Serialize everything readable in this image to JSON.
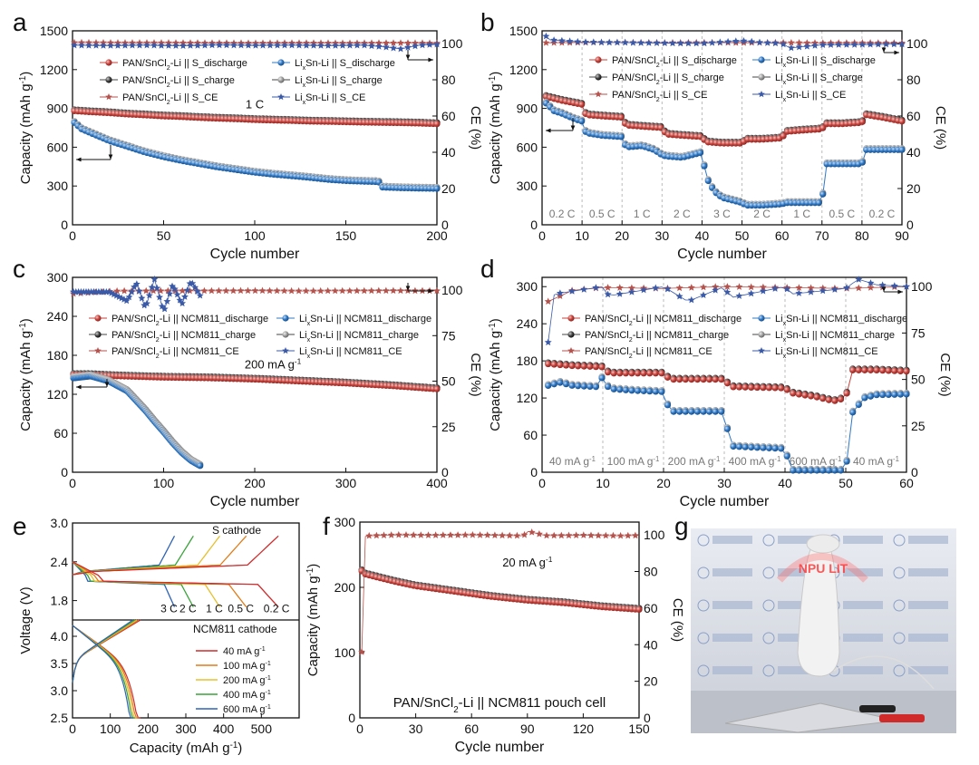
{
  "figure": {
    "panel_labels": [
      "a",
      "b",
      "c",
      "d",
      "e",
      "f",
      "g"
    ],
    "colors": {
      "red": "#c9403a",
      "blue": "#2e78c6",
      "black": "#333333",
      "gray": "#9a9a9a",
      "star_red": "#b5524c",
      "star_blue": "#3a5aa8"
    }
  },
  "chart_data": [
    {
      "panel": "a",
      "type": "scatter",
      "xlabel": "Cycle number",
      "ylabel": "Capacity (mAh g-1)",
      "y2label": "CE (%)",
      "xlim": [
        0,
        200
      ],
      "ylim": [
        0,
        1500
      ],
      "y2lim": [
        0,
        107
      ],
      "xticks": [
        0,
        50,
        100,
        150,
        200
      ],
      "yticks": [
        0,
        300,
        600,
        900,
        1200,
        1500
      ],
      "y2ticks": [
        0,
        20,
        40,
        60,
        80,
        100
      ],
      "annotation": "1 C",
      "legend": [
        "PAN/SnCl2-Li || S_discharge",
        "PAN/SnCl2-Li || S_charge",
        "PAN/SnCl2-Li || S_CE",
        "LixSn-Li || S_discharge",
        "LixSn-Li || S_charge",
        "LixSn-Li || S_CE"
      ],
      "series": [
        {
          "name": "PAN/SnCl2-Li || S_discharge",
          "kind": "cap",
          "color": "red",
          "x": [
            1,
            10,
            20,
            30,
            40,
            50,
            60,
            70,
            80,
            90,
            100,
            110,
            120,
            130,
            140,
            150,
            160,
            170,
            180,
            190,
            200
          ],
          "y": [
            880,
            872,
            865,
            855,
            848,
            840,
            835,
            828,
            822,
            818,
            812,
            808,
            805,
            800,
            798,
            795,
            792,
            790,
            788,
            785,
            780
          ]
        },
        {
          "name": "LixSn-Li || S_discharge",
          "kind": "cap",
          "color": "blue",
          "x": [
            1,
            5,
            10,
            15,
            20,
            30,
            40,
            50,
            60,
            70,
            80,
            90,
            100,
            110,
            120,
            130,
            140,
            150,
            160,
            168,
            170,
            180,
            190,
            200
          ],
          "y": [
            790,
            740,
            710,
            680,
            650,
            605,
            560,
            525,
            495,
            470,
            445,
            425,
            405,
            390,
            378,
            365,
            350,
            340,
            335,
            332,
            290,
            285,
            282,
            280
          ]
        },
        {
          "name": "PAN/SnCl2-Li || S_CE",
          "kind": "ce",
          "color": "red",
          "x": [
            1,
            25,
            50,
            75,
            100,
            125,
            150,
            175,
            200
          ],
          "y": [
            100.5,
            100.4,
            100.4,
            100.3,
            100.2,
            100.3,
            100.2,
            100.3,
            100.2
          ]
        },
        {
          "name": "LixSn-Li || S_CE",
          "kind": "ce",
          "color": "blue",
          "x": [
            1,
            20,
            40,
            60,
            80,
            100,
            120,
            140,
            160,
            170,
            180,
            190,
            200
          ],
          "y": [
            99,
            98.8,
            99,
            98.7,
            99.1,
            98.9,
            99,
            98.8,
            99,
            98.2,
            97,
            99,
            99.5
          ]
        }
      ]
    },
    {
      "panel": "b",
      "type": "scatter",
      "xlabel": "Cycle number",
      "ylabel": "Capacity (mAh g-1)",
      "y2label": "CE (%)",
      "xlim": [
        0,
        90
      ],
      "ylim": [
        0,
        1500
      ],
      "y2lim": [
        0,
        107
      ],
      "xticks": [
        0,
        10,
        20,
        30,
        40,
        50,
        60,
        70,
        80,
        90
      ],
      "yticks": [
        0,
        300,
        600,
        900,
        1200,
        1500
      ],
      "y2ticks": [
        0,
        20,
        40,
        60,
        80,
        100
      ],
      "rate_labels": [
        "0.2 C",
        "0.5 C",
        "1 C",
        "2 C",
        "3 C",
        "2 C",
        "1 C",
        "0.5 C",
        "0.2 C"
      ],
      "legend": [
        "PAN/SnCl2-Li || S_discharge",
        "PAN/SnCl2-Li || S_charge",
        "PAN/SnCl2-Li || S_CE",
        "LixSn-Li || S_discharge",
        "LixSn-Li || S_charge",
        "LixSn-Li || S_CE"
      ],
      "series": [
        {
          "name": "PAN/SnCl2-Li || S_discharge",
          "kind": "cap",
          "color": "red",
          "x": [
            1,
            5,
            10,
            11,
            15,
            20,
            21,
            25,
            30,
            31,
            35,
            40,
            41,
            45,
            50,
            51,
            55,
            60,
            61,
            65,
            70,
            71,
            75,
            80,
            81,
            85,
            90
          ],
          "y": [
            990,
            960,
            930,
            850,
            840,
            830,
            770,
            760,
            750,
            700,
            690,
            680,
            640,
            630,
            630,
            660,
            660,
            670,
            720,
            730,
            740,
            780,
            780,
            790,
            850,
            830,
            800
          ]
        },
        {
          "name": "LixSn-Li || S_discharge",
          "kind": "cap",
          "color": "blue",
          "x": [
            1,
            3,
            5,
            8,
            10,
            11,
            15,
            20,
            21,
            25,
            28,
            30,
            31,
            35,
            40,
            41,
            43,
            45,
            50,
            51,
            55,
            60,
            61,
            65,
            70,
            71,
            75,
            80,
            81,
            85,
            90
          ],
          "y": [
            940,
            880,
            860,
            820,
            800,
            710,
            690,
            680,
            600,
            610,
            580,
            540,
            530,
            520,
            560,
            370,
            260,
            210,
            170,
            150,
            150,
            160,
            170,
            170,
            170,
            470,
            470,
            470,
            580,
            580,
            580
          ]
        },
        {
          "name": "PAN/SnCl2-Li || S_CE",
          "kind": "ce",
          "color": "red",
          "x": [
            1,
            10,
            20,
            30,
            40,
            50,
            60,
            70,
            80,
            90
          ],
          "y": [
            100.4,
            100.5,
            100.6,
            100.4,
            100.5,
            100.4,
            100.5,
            100.3,
            100.4,
            100.3
          ]
        },
        {
          "name": "LixSn-Li || S_CE",
          "kind": "ce",
          "color": "blue",
          "x": [
            1,
            2,
            10,
            20,
            30,
            40,
            50,
            55,
            60,
            62,
            70,
            80,
            90
          ],
          "y": [
            104,
            102,
            100.8,
            100.5,
            100.2,
            100,
            101.5,
            100.5,
            100,
            97.5,
            99.2,
            99.4,
            99.6
          ]
        }
      ]
    },
    {
      "panel": "c",
      "type": "scatter",
      "xlabel": "Cycle number",
      "ylabel": "Capacity (mAh g-1)",
      "y2label": "CE (%)",
      "xlim": [
        0,
        400
      ],
      "ylim": [
        0,
        300
      ],
      "y2lim": [
        0,
        107
      ],
      "xticks": [
        0,
        100,
        200,
        300,
        400
      ],
      "yticks": [
        0,
        60,
        120,
        180,
        240,
        300
      ],
      "y2ticks": [
        0,
        25,
        50,
        75,
        100
      ],
      "annotation": "200 mA g-1",
      "legend": [
        "PAN/SnCl2-Li || NCM811_discharge",
        "PAN/SnCl2-Li || NCM811_charge",
        "PAN/SnCl2-Li || NCM811_CE",
        "LixSn-Li || NCM811_discharge",
        "LixSn-Li || NCM811_charge",
        "LixSn-Li || NCM811_CE"
      ],
      "series": [
        {
          "name": "PAN/SnCl2-Li || NCM811_discharge",
          "kind": "cap",
          "color": "red",
          "x": [
            1,
            20,
            50,
            100,
            150,
            200,
            250,
            300,
            350,
            400
          ],
          "y": [
            150,
            150,
            148,
            146,
            145,
            143,
            140,
            137,
            133,
            128
          ]
        },
        {
          "name": "LixSn-Li || NCM811_discharge",
          "kind": "cap",
          "color": "blue",
          "x": [
            1,
            20,
            40,
            60,
            80,
            90,
            100,
            110,
            120,
            130,
            140
          ],
          "y": [
            145,
            148,
            140,
            125,
            95,
            78,
            62,
            45,
            30,
            18,
            10
          ]
        },
        {
          "name": "PAN/SnCl2-Li || NCM811_CE",
          "kind": "ce",
          "color": "red",
          "x": [
            1,
            50,
            100,
            150,
            200,
            250,
            300,
            350,
            400
          ],
          "y": [
            98,
            99.5,
            99.6,
            99.6,
            99.7,
            99.5,
            99.6,
            99.7,
            99.6
          ]
        },
        {
          "name": "LixSn-Li || NCM811_CE",
          "kind": "ce",
          "color": "blue",
          "x": [
            1,
            40,
            60,
            70,
            80,
            90,
            100,
            110,
            120,
            130,
            140
          ],
          "y": [
            99,
            99,
            94,
            104,
            90,
            106,
            88,
            103,
            92,
            105,
            97
          ]
        }
      ]
    },
    {
      "panel": "d",
      "type": "scatter",
      "xlabel": "Cycle number",
      "ylabel": "Capacity (mAh g-1)",
      "y2label": "CE (%)",
      "xlim": [
        0,
        60
      ],
      "ylim": [
        0,
        315
      ],
      "y2lim": [
        0,
        105
      ],
      "xticks": [
        0,
        10,
        20,
        30,
        40,
        50,
        60
      ],
      "yticks": [
        0,
        60,
        120,
        180,
        240,
        300
      ],
      "y2ticks": [
        0,
        25,
        50,
        75,
        100
      ],
      "rate_labels": [
        "40 mA g-1",
        "100 mA g-1",
        "200 mA g-1",
        "400 mA g-1",
        "600 mA g-1",
        "40 mA g-1"
      ],
      "legend": [
        "PAN/SnCl2-Li || NCM811_discharge",
        "PAN/SnCl2-Li || NCM811_charge",
        "PAN/SnCl2-Li || NCM811_CE",
        "LixSn-Li || NCM811_discharge",
        "LixSn-Li || NCM811_charge",
        "LixSn-Li || NCM811_CE"
      ],
      "series": [
        {
          "name": "PAN/SnCl2-Li || NCM811_discharge",
          "kind": "cap",
          "color": "red",
          "x": [
            1,
            5,
            10,
            11,
            15,
            20,
            21,
            25,
            30,
            31,
            35,
            40,
            41,
            45,
            48,
            50,
            51,
            55,
            60
          ],
          "y": [
            175,
            172,
            170,
            160,
            160,
            160,
            150,
            150,
            150,
            138,
            137,
            136,
            128,
            122,
            115,
            120,
            165,
            165,
            163
          ]
        },
        {
          "name": "LixSn-Li || NCM811_discharge",
          "kind": "cap",
          "color": "blue",
          "x": [
            1,
            3,
            5,
            9,
            10,
            11,
            15,
            20,
            21,
            25,
            30,
            31,
            35,
            40,
            41,
            45,
            50,
            51,
            53,
            55,
            60
          ],
          "y": [
            140,
            145,
            140,
            138,
            155,
            135,
            132,
            130,
            98,
            98,
            98,
            42,
            40,
            38,
            2,
            2,
            2,
            95,
            120,
            125,
            126
          ]
        },
        {
          "name": "PAN/SnCl2-Li || NCM811_CE",
          "kind": "ce",
          "color": "red",
          "x": [
            1,
            5,
            10,
            20,
            30,
            40,
            50,
            55,
            60
          ],
          "y": [
            92,
            98,
            99.5,
            99,
            100,
            99.5,
            99,
            99.5,
            100
          ]
        },
        {
          "name": "LixSn-Li || NCM811_CE",
          "kind": "ce",
          "color": "blue",
          "x": [
            1,
            2,
            10,
            11,
            20,
            24,
            30,
            31,
            40,
            41,
            50,
            52,
            55,
            60
          ],
          "y": [
            70,
            96,
            100,
            95,
            100,
            92,
            100,
            94,
            100,
            96,
            99,
            104,
            101,
            100
          ]
        }
      ]
    },
    {
      "panel": "e",
      "type": "line",
      "xlabel": "Capacity (mAh g-1)",
      "ylabel": "Voltage (V)",
      "xlim": [
        0,
        600
      ],
      "ylim_top": [
        1.5,
        3.0
      ],
      "ylim_bottom": [
        2.5,
        4.3
      ],
      "xticks": [
        0,
        100,
        200,
        300,
        400,
        500
      ],
      "yticks_top": [
        1.8,
        2.4,
        3.0
      ],
      "yticks_bottom": [
        2.5,
        3.0,
        3.5,
        4.0
      ],
      "top_title": "S cathode",
      "bottom_title": "NCM811 cathode",
      "s_rates": [
        "3 C",
        "2 C",
        "1 C",
        "0.5 C",
        "0.2 C"
      ],
      "s_capacities": [
        270,
        320,
        390,
        460,
        545
      ],
      "ncm_rates": [
        "40 mA g-1",
        "100 mA g-1",
        "200 mA g-1",
        "400 mA g-1",
        "600 mA g-1"
      ],
      "ncm_capacities": [
        180,
        175,
        170,
        165,
        160
      ]
    },
    {
      "panel": "f",
      "type": "scatter",
      "xlabel": "Cycle number",
      "ylabel": "Capacity (mAh g-1)",
      "y2label": "CE (%)",
      "xlim": [
        0,
        150
      ],
      "ylim": [
        0,
        300
      ],
      "y2lim": [
        0,
        107
      ],
      "xticks": [
        0,
        30,
        60,
        90,
        120,
        150
      ],
      "yticks": [
        0,
        100,
        200,
        300
      ],
      "y2ticks": [
        0,
        20,
        40,
        60,
        80,
        100
      ],
      "annotation": "20 mA g-1",
      "caption": "PAN/SnCl2-Li || NCM811 pouch cell",
      "series": [
        {
          "name": "capacity",
          "kind": "cap",
          "color": "red",
          "x": [
            1,
            3,
            10,
            20,
            30,
            40,
            50,
            60,
            70,
            80,
            90,
            100,
            110,
            120,
            130,
            140,
            150
          ],
          "y": [
            225,
            220,
            215,
            208,
            202,
            198,
            194,
            190,
            186,
            183,
            180,
            178,
            176,
            173,
            170,
            168,
            166
          ]
        },
        {
          "name": "CE",
          "kind": "ce",
          "color": "red",
          "x": [
            1,
            2,
            5,
            20,
            40,
            60,
            88,
            90,
            100,
            120,
            140,
            150
          ],
          "y": [
            36,
            99,
            99.5,
            100,
            99.8,
            100,
            99.5,
            102,
            99.6,
            99.8,
            99.5,
            99.7
          ]
        }
      ]
    }
  ],
  "photo": {
    "panel": "g",
    "description_icon": "photo-icon",
    "display_text": "NPU LIT"
  }
}
